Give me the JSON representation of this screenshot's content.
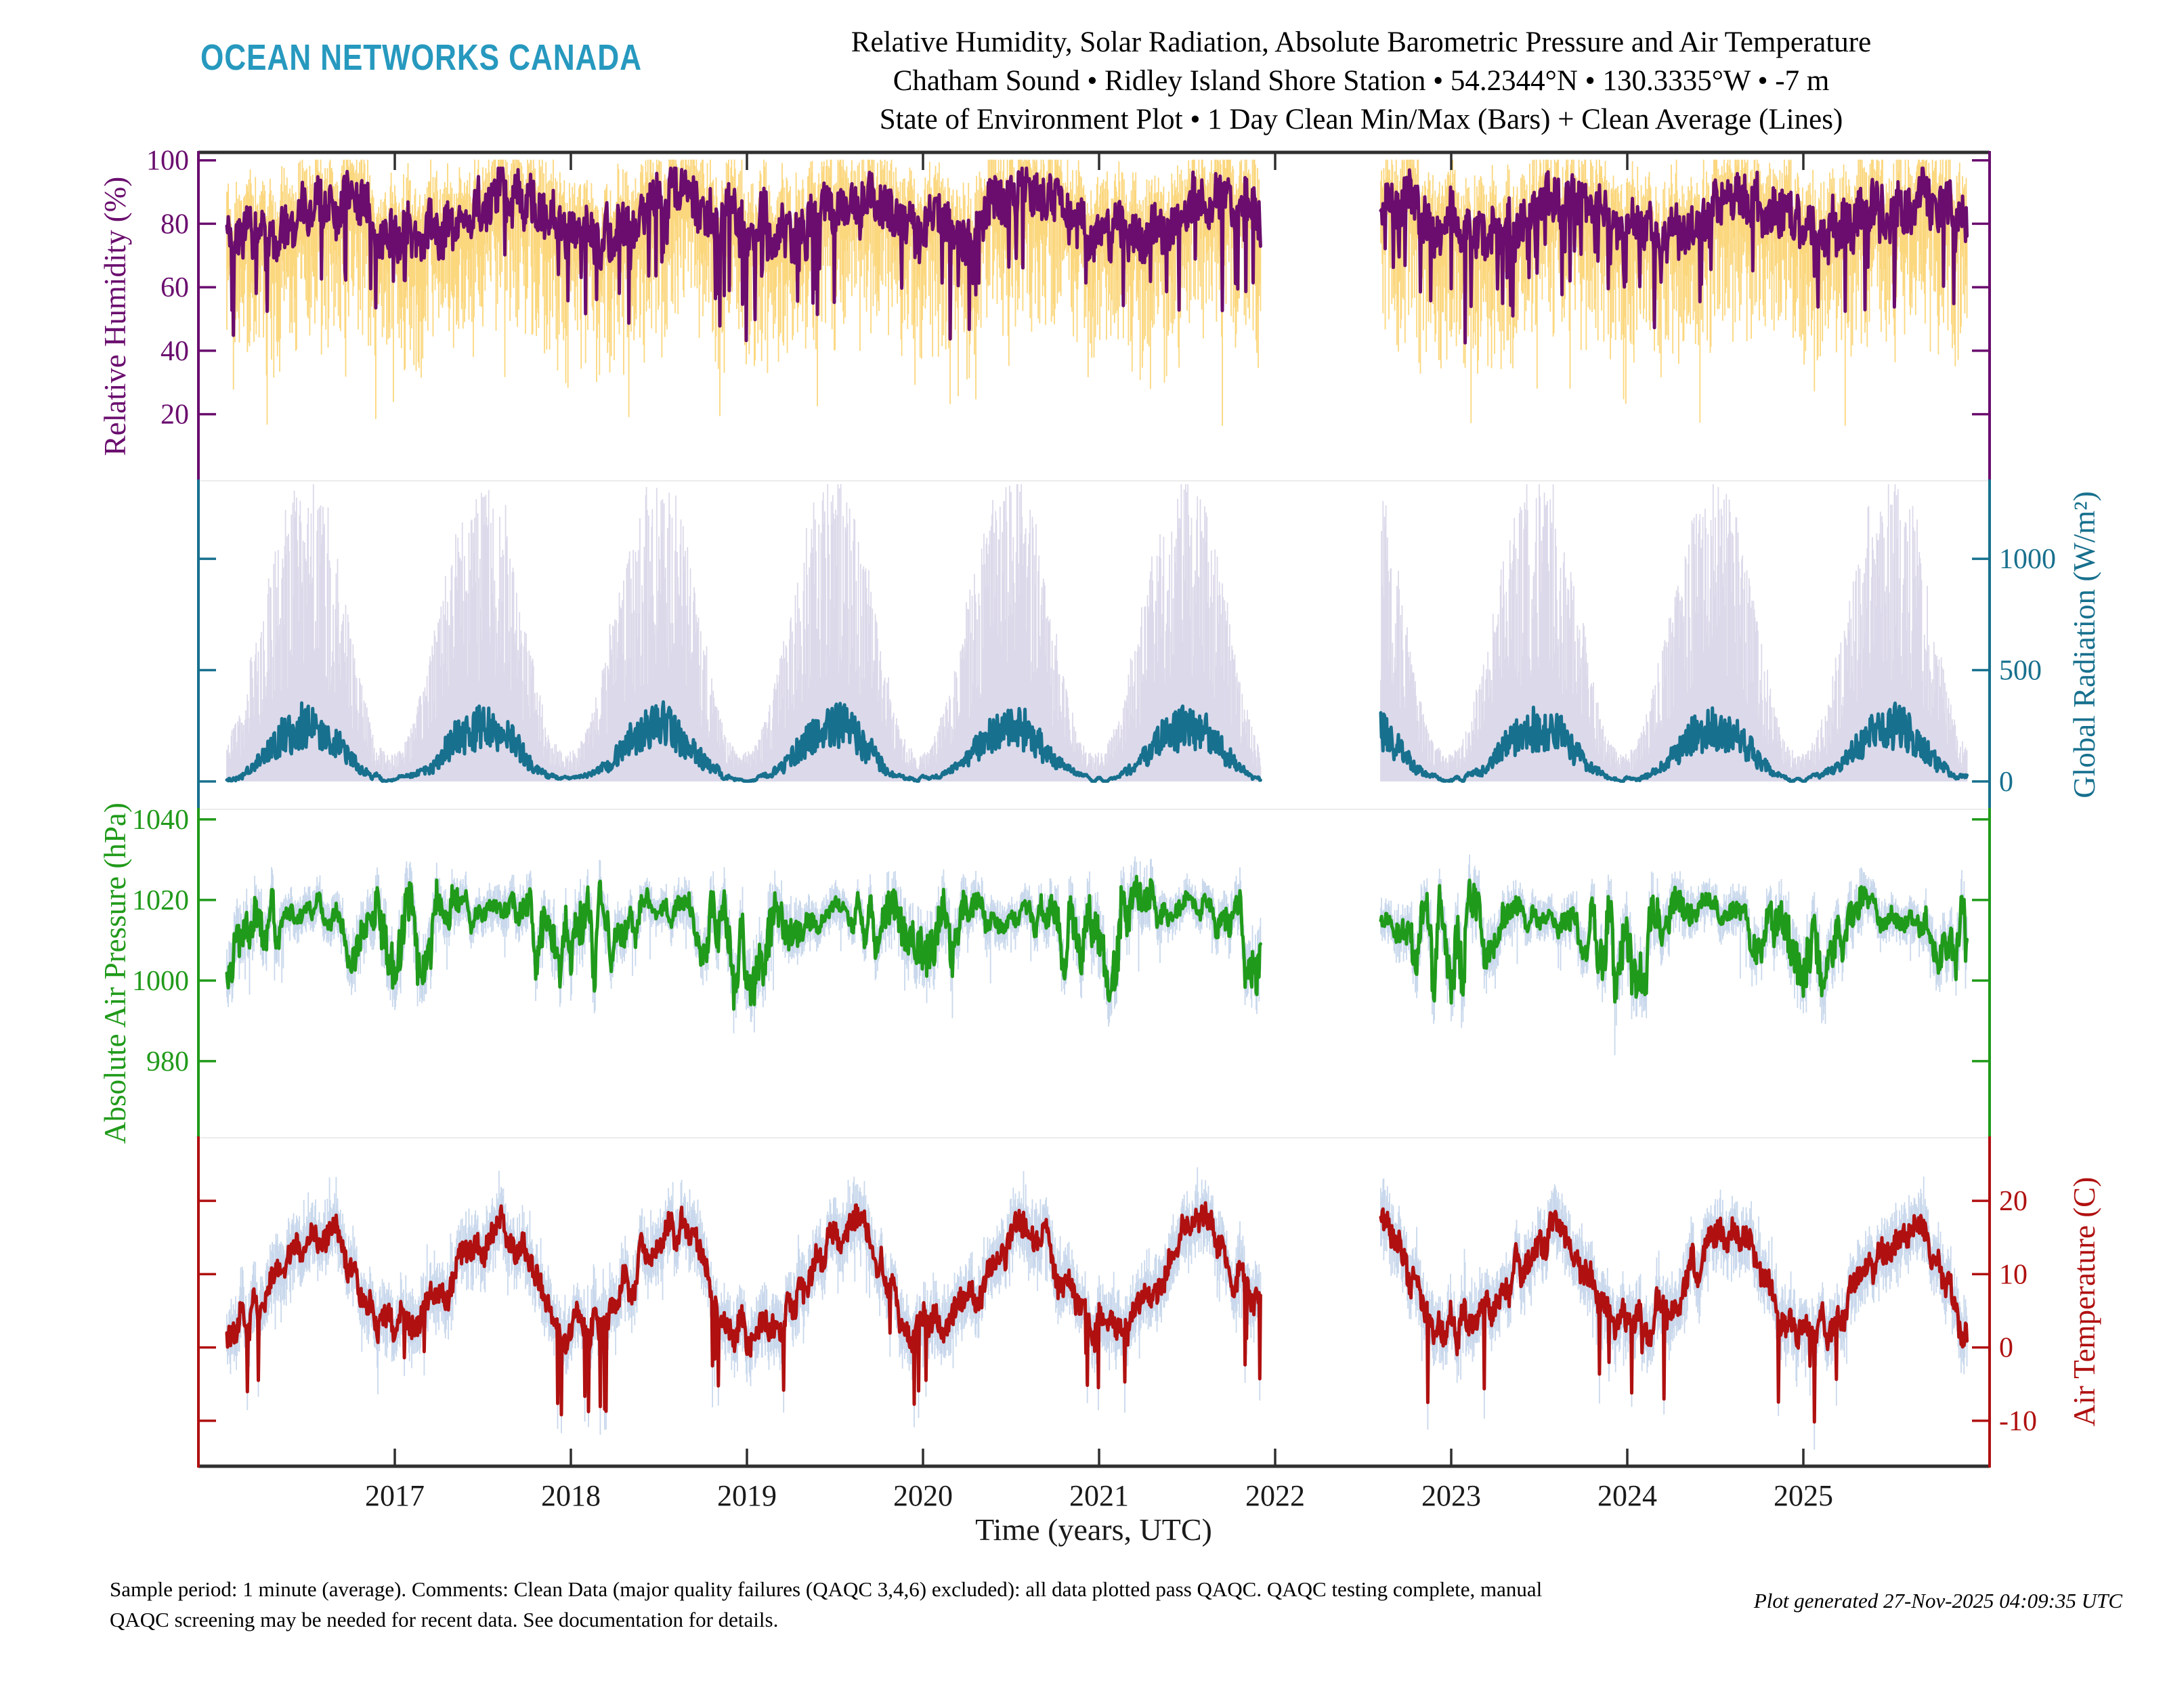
{
  "header": {
    "logo": "OCEAN NETWORKS CANADA",
    "logo_color": "#2799bf",
    "title_line1": "Relative Humidity, Solar Radiation, Absolute Barometric Pressure and Air Temperature",
    "title_line2": "Chatham Sound • Ridley Island Shore Station • 54.2344°N • 130.3335°W • -7 m",
    "title_line3": "State of Environment Plot • 1 Day Clean Min/Max (Bars) + Clean Average (Lines)"
  },
  "footer": {
    "line1": "Sample period: 1 minute (average). Comments: Clean Data (major quality failures (QAQC 3,4,6) excluded): all data plotted pass QAQC. QAQC testing complete, manual",
    "line2": "QAQC screening may be needed for recent data. See documentation for details.",
    "generated": "Plot generated 27-Nov-2025 04:09:35 UTC"
  },
  "chart_data": {
    "type": "line",
    "description": "Four stacked time-series panels; each shows 1-day clean min/max as vertical bars and clean daily average as a line.",
    "x_axis": {
      "label": "Time (years, UTC)",
      "ticks": [
        2017,
        2018,
        2019,
        2020,
        2021,
        2022,
        2023,
        2024,
        2025
      ],
      "range": [
        2015.885,
        2026.06
      ],
      "color": "#2f2f2f"
    },
    "data_span": [
      2016.046,
      2025.93
    ],
    "data_gap": [
      2021.92,
      2022.6
    ],
    "panels": [
      {
        "id": "humidity",
        "seed": 101,
        "y_axis": {
          "label": "Relative Humidity (%)",
          "side": "left",
          "color": "#6a0d6e",
          "ticks": [
            20,
            40,
            60,
            80,
            100
          ],
          "range_top": 102.5,
          "range_bottom": -1.0
        },
        "line_color": "#6a0d6e",
        "bar_color": "#fbd77e",
        "monthly_avg": [
          80,
          78,
          77,
          78,
          81,
          84,
          87,
          88,
          87,
          84,
          81,
          80
        ],
        "monthly_min_env": [
          40,
          38,
          36,
          40,
          48,
          55,
          60,
          62,
          56,
          50,
          44,
          42
        ],
        "monthly_max_env": [
          100,
          100,
          100,
          100,
          100,
          100,
          100,
          100,
          100,
          100,
          100,
          100
        ]
      },
      {
        "id": "radiation",
        "seed": 202,
        "y_axis": {
          "label": "Global Radiation (W/m²)",
          "side": "right",
          "color": "#17708e",
          "ticks": [
            0,
            500,
            1000
          ],
          "range_top": 1350,
          "range_bottom": -125
        },
        "line_color": "#17708e",
        "bar_color": "#dcd9ea",
        "monthly_avg": [
          12,
          30,
          75,
          150,
          215,
          255,
          265,
          215,
          145,
          65,
          22,
          10
        ],
        "monthly_min_env": [
          0,
          0,
          0,
          0,
          0,
          0,
          0,
          0,
          0,
          0,
          0,
          0
        ],
        "monthly_max_env": [
          140,
          320,
          600,
          900,
          1150,
          1280,
          1300,
          1150,
          830,
          480,
          200,
          110
        ]
      },
      {
        "id": "pressure",
        "seed": 303,
        "y_axis": {
          "label": "Absolute Air Pressure (hPa)",
          "side": "left",
          "color": "#209a1a",
          "ticks": [
            980,
            1000,
            1020,
            1040
          ],
          "range_top": 1042.5,
          "range_bottom": 961
        },
        "line_color": "#209a1a",
        "bar_color": "#c9d8ec",
        "monthly_avg": [
          1009,
          1011,
          1013,
          1015,
          1016,
          1017,
          1017,
          1016,
          1014,
          1011,
          1009,
          1008
        ],
        "monthly_min_env": [
          984,
          988,
          992,
          998,
          1004,
          1008,
          1009,
          1007,
          1000,
          992,
          986,
          982
        ],
        "monthly_max_env": [
          1032,
          1032,
          1030,
          1028,
          1026,
          1025,
          1025,
          1024,
          1026,
          1028,
          1031,
          1033
        ]
      },
      {
        "id": "temperature",
        "seed": 404,
        "y_axis": {
          "label": "Air Temperature (C)",
          "side": "right",
          "color": "#b01010",
          "ticks": [
            -10,
            0,
            10,
            20
          ],
          "range_top": 28.6,
          "range_bottom": -16.2
        },
        "line_color": "#b01010",
        "bar_color": "#c9d8ec",
        "monthly_avg": [
          2.5,
          3.2,
          5.0,
          7.8,
          11.0,
          13.5,
          15.5,
          15.8,
          13.2,
          8.8,
          4.8,
          2.8
        ],
        "monthly_min_env": [
          -9,
          -7,
          -3,
          1,
          5,
          8,
          10,
          10,
          7,
          2,
          -4,
          -8
        ],
        "monthly_max_env": [
          9,
          10,
          12,
          15,
          18,
          19,
          20,
          20,
          18,
          14,
          11,
          9
        ]
      }
    ],
    "legend_note": "1 Day Clean Min/Max (Bars) + Clean Average (Lines)",
    "grid": false
  }
}
